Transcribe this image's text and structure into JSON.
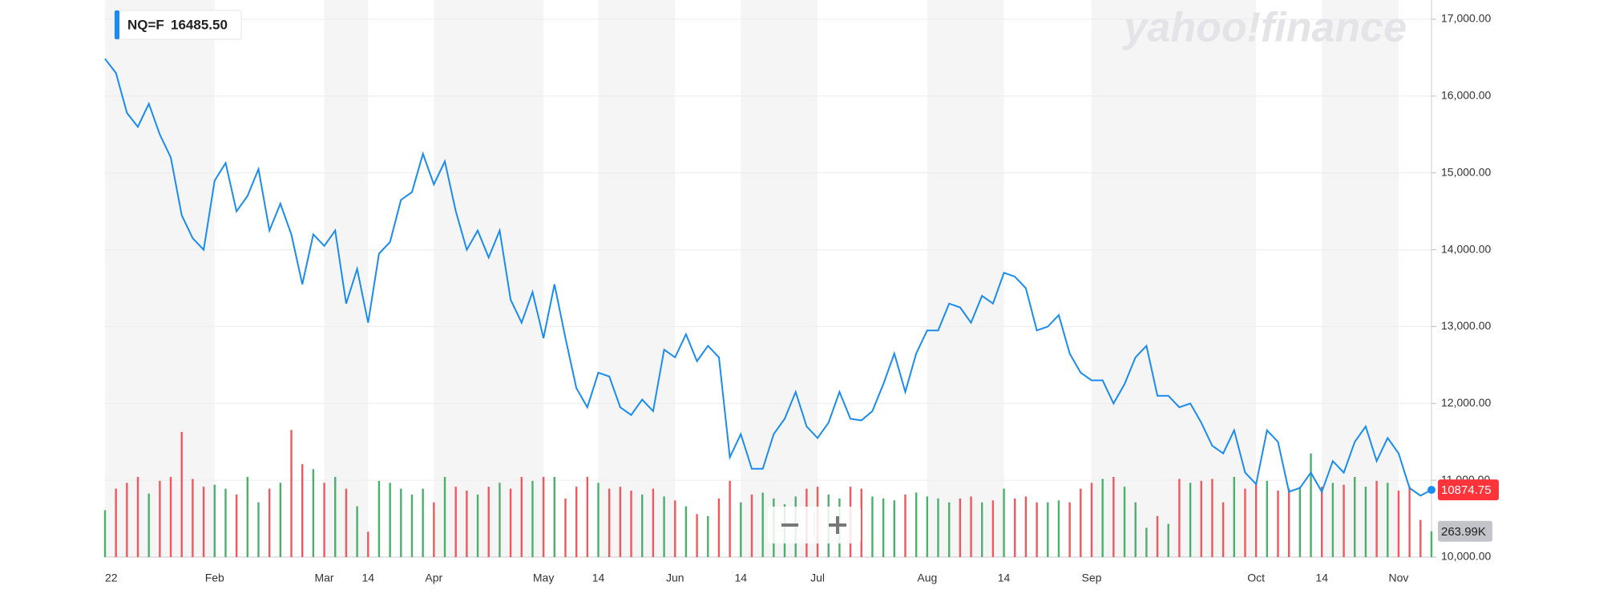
{
  "watermark": "yahoo!finance",
  "chart_data": {
    "type": "line",
    "tooltip_label": "16485.50",
    "last_volume_label": "263.99K",
    "categories": [
      "22",
      null,
      null,
      null,
      null,
      null,
      null,
      null,
      null,
      null,
      "Feb",
      null,
      null,
      null,
      null,
      null,
      null,
      null,
      null,
      null,
      "Mar",
      null,
      null,
      null,
      "14",
      null,
      null,
      null,
      null,
      null,
      "Apr",
      null,
      null,
      null,
      null,
      null,
      null,
      null,
      null,
      null,
      "May",
      null,
      null,
      null,
      null,
      "14",
      null,
      null,
      null,
      null,
      null,
      null,
      "Jun",
      null,
      null,
      null,
      null,
      null,
      "14",
      null,
      null,
      null,
      null,
      null,
      null,
      "Jul",
      null,
      null,
      null,
      null,
      null,
      null,
      null,
      null,
      null,
      "Aug",
      null,
      null,
      null,
      null,
      null,
      null,
      "14",
      null,
      null,
      null,
      null,
      null,
      null,
      null,
      "Sep",
      null,
      null,
      null,
      null,
      null,
      null,
      null,
      null,
      null,
      null,
      null,
      null,
      null,
      null,
      "Oct",
      null,
      null,
      null,
      null,
      null,
      "14",
      null,
      null,
      null,
      null,
      null,
      null,
      "Nov",
      null,
      null,
      null
    ],
    "series": [
      {
        "name": "NQ=F",
        "color": "#1a8cf0",
        "values": [
          16485.5,
          16300,
          15780,
          15600,
          15900,
          15500,
          15200,
          14450,
          14150,
          14000,
          14900,
          15130,
          14500,
          14700,
          15050,
          14250,
          14600,
          14200,
          13550,
          14200,
          14050,
          14250,
          13300,
          13750,
          13050,
          13950,
          14100,
          14650,
          14750,
          15250,
          14850,
          15150,
          14500,
          14000,
          14250,
          13900,
          14250,
          13350,
          13050,
          13450,
          12850,
          13550,
          12850,
          12200,
          11950,
          12400,
          12350,
          11950,
          11850,
          12050,
          11900,
          12700,
          12600,
          12900,
          12550,
          12750,
          12600,
          11300,
          11600,
          11150,
          11150,
          11600,
          11800,
          12150,
          11700,
          11550,
          11750,
          12150,
          11800,
          11780,
          11900,
          12250,
          12650,
          12150,
          12650,
          12950,
          12950,
          13300,
          13250,
          13050,
          13400,
          13300,
          13700,
          13650,
          13500,
          12950,
          13000,
          13150,
          12650,
          12400,
          12300,
          12300,
          12000,
          12250,
          12600,
          12750,
          12100,
          12100,
          11950,
          12000,
          11750,
          11450,
          11350,
          11650,
          11100,
          10950,
          11650,
          11500,
          10850,
          10900,
          11100,
          10850,
          11250,
          11100,
          11500,
          11700,
          11250,
          11550,
          11350,
          10900,
          10800,
          10874.75
        ]
      },
      {
        "name": "Volume",
        "axis": "y2",
        "up_color": "#4cb06c",
        "down_color": "#f0585e",
        "values": [
          480000,
          700000,
          760000,
          820000,
          650000,
          780000,
          820000,
          1280000,
          800000,
          720000,
          740000,
          700000,
          640000,
          820000,
          560000,
          700000,
          760000,
          1300000,
          950000,
          900000,
          760000,
          820000,
          700000,
          520000,
          260000,
          780000,
          760000,
          700000,
          640000,
          700000,
          560000,
          820000,
          720000,
          680000,
          640000,
          720000,
          760000,
          700000,
          820000,
          780000,
          820000,
          820000,
          600000,
          720000,
          820000,
          760000,
          700000,
          720000,
          680000,
          640000,
          700000,
          620000,
          580000,
          520000,
          440000,
          420000,
          600000,
          780000,
          560000,
          640000,
          660000,
          600000,
          540000,
          620000,
          700000,
          720000,
          640000,
          600000,
          720000,
          700000,
          620000,
          600000,
          580000,
          640000,
          660000,
          620000,
          600000,
          560000,
          600000,
          620000,
          560000,
          580000,
          700000,
          600000,
          620000,
          560000,
          560000,
          580000,
          560000,
          700000,
          760000,
          800000,
          820000,
          720000,
          560000,
          300000,
          420000,
          340000,
          800000,
          760000,
          780000,
          800000,
          560000,
          820000,
          700000,
          760000,
          780000,
          680000,
          700000,
          720000,
          1060000,
          720000,
          760000,
          740000,
          820000,
          720000,
          780000,
          760000,
          680000,
          720000,
          380000,
          263990
        ]
      }
    ],
    "ylim": [
      10000,
      17000
    ],
    "yticks": [
      {
        "value": 10000,
        "label": "10,000.00"
      },
      {
        "value": 11000,
        "label": "11,000.00"
      },
      {
        "value": 12000,
        "label": "12,000.00"
      },
      {
        "value": 13000,
        "label": "13,000.00"
      },
      {
        "value": 14000,
        "label": "14,000.00"
      },
      {
        "value": 15000,
        "label": "15,000.00"
      },
      {
        "value": 16000,
        "label": "16,000.00"
      },
      {
        "value": 17000,
        "label": "17,000.00"
      }
    ],
    "y2lim": [
      0,
      5500000
    ],
    "grid": true
  }
}
